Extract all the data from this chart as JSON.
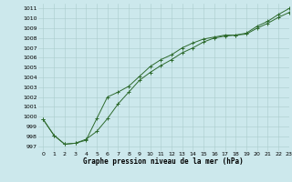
{
  "xlabel": "Graphe pression niveau de la mer (hPa)",
  "xlim": [
    -0.5,
    23
  ],
  "ylim": [
    996.5,
    1011.5
  ],
  "yticks": [
    997,
    998,
    999,
    1000,
    1001,
    1002,
    1003,
    1004,
    1005,
    1006,
    1007,
    1008,
    1009,
    1010,
    1011
  ],
  "xticks": [
    0,
    1,
    2,
    3,
    4,
    5,
    6,
    7,
    8,
    9,
    10,
    11,
    12,
    13,
    14,
    15,
    16,
    17,
    18,
    19,
    20,
    21,
    22,
    23
  ],
  "bg_color": "#cce8ec",
  "grid_color": "#aacccc",
  "line_color": "#2d6a2d",
  "series1_x": [
    0,
    1,
    2,
    3,
    4,
    5,
    6,
    7,
    8,
    9,
    10,
    11,
    12,
    13,
    14,
    15,
    16,
    17,
    18,
    19,
    20,
    21,
    22,
    23
  ],
  "series1_y": [
    999.7,
    998.1,
    997.2,
    997.3,
    997.7,
    998.5,
    999.8,
    1001.3,
    1002.5,
    1003.7,
    1004.5,
    1005.2,
    1005.8,
    1006.5,
    1007.0,
    1007.6,
    1008.0,
    1008.2,
    1008.3,
    1008.4,
    1009.0,
    1009.5,
    1010.1,
    1010.6
  ],
  "series2_x": [
    0,
    1,
    2,
    3,
    4,
    5,
    6,
    7,
    8,
    9,
    10,
    11,
    12,
    13,
    14,
    15,
    16,
    17,
    18,
    19,
    20,
    21,
    22,
    23
  ],
  "series2_y": [
    999.7,
    998.1,
    997.2,
    997.3,
    997.6,
    999.8,
    1002.0,
    1002.5,
    1003.1,
    1004.1,
    1005.1,
    1005.8,
    1006.3,
    1007.0,
    1007.5,
    1007.9,
    1008.1,
    1008.3,
    1008.3,
    1008.5,
    1009.2,
    1009.7,
    1010.4,
    1011.0
  ]
}
